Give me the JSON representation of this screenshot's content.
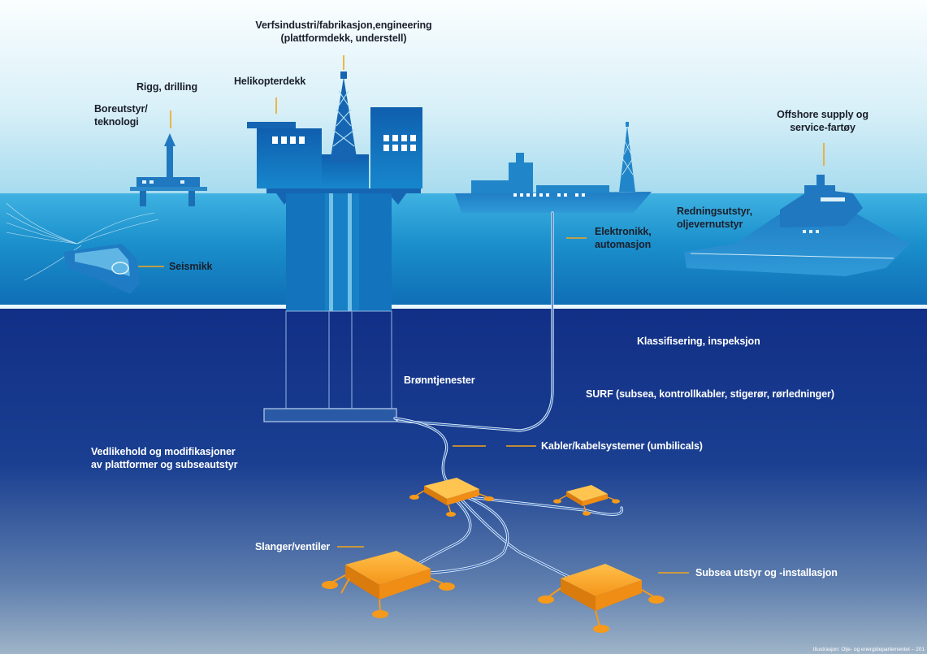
{
  "labels": {
    "verfsindustri": [
      "Verfsindustri/fabrikasjon,engineering",
      "(plattformdekk, understell)"
    ],
    "rigg": [
      "Rigg, drilling"
    ],
    "helikopterdekk": [
      "Helikopterdekk"
    ],
    "boreutstyr": [
      "Boreutstyr/",
      "teknologi"
    ],
    "offshore_supply": [
      "Offshore supply og",
      "service-fartøy"
    ],
    "redningsutstyr": [
      "Redningsutstyr,",
      "oljevernutstyr"
    ],
    "elektronikk": [
      "Elektronikk,",
      "automasjon"
    ],
    "seismikk": [
      "Seismikk"
    ],
    "klassifisering": [
      "Klassifisering, inspeksjon"
    ],
    "bronntjenester": [
      "Brønntjenester"
    ],
    "surf": [
      "SURF (subsea, kontrollkabler, stigerør, rørledninger)"
    ],
    "vedlikehold": [
      "Vedlikehold og modifikasjoner",
      "av plattformer og subseautstyr"
    ],
    "kabler": [
      "Kabler/kabelsystemer (umbilicals)"
    ],
    "slanger": [
      "Slanger/ventiler"
    ],
    "subsea": [
      "Subsea utstyr og -installasjon"
    ]
  },
  "credit": "Illustrasjon: Olje- og energidepartementet – 201",
  "colors": {
    "leader_line": "#f2a51a",
    "subsea_equipment": "#f59a1a",
    "sky_top": "#f4fbfd",
    "sky_bottom": "#a9dcee",
    "sea_surface": "#1b8fc9",
    "deep_sea": "#12328a"
  }
}
